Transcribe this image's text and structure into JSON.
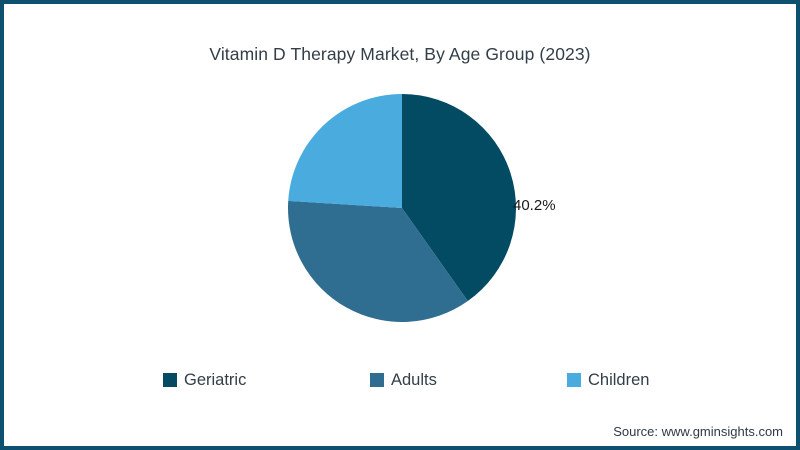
{
  "frame": {
    "border_color": "#0e506f",
    "background_color": "#ffffff"
  },
  "title": "Vitamin D Therapy Market, By Age Group (2023)",
  "chart_data": {
    "type": "pie",
    "title": "Vitamin D Therapy Market, By Age Group (2023)",
    "unit": "%",
    "start_angle_deg": 0,
    "direction": "clockwise",
    "legend_position": "bottom",
    "slices": [
      {
        "label": "Geriatric",
        "value": 40.2,
        "color": "#034a63",
        "data_label": "40.2%"
      },
      {
        "label": "Adults",
        "value": 35.8,
        "color": "#2f6e91",
        "data_label": ""
      },
      {
        "label": "Children",
        "value": 24.0,
        "color": "#4aabdf",
        "data_label": ""
      }
    ],
    "annotations": [
      {
        "text": "40.2%",
        "target_slice": "Geriatric",
        "position": "right-of-pie"
      }
    ]
  },
  "source": {
    "text": "Source: www.gminsights.com"
  }
}
